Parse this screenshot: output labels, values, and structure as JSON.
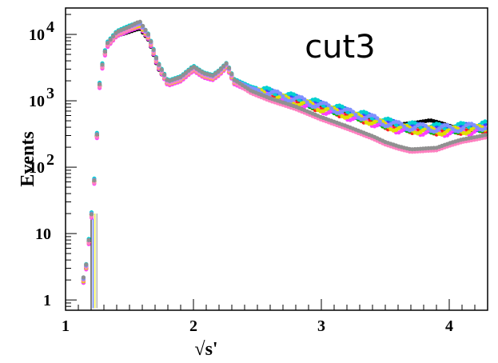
{
  "chart_data": {
    "type": "scatter",
    "title": "",
    "annotation": "cut3",
    "xlabel": "√s'",
    "ylabel": "Events",
    "xlim": [
      1.0,
      4.3
    ],
    "ylim": [
      0.7,
      25000
    ],
    "yscale": "log",
    "grid": false,
    "legend": "none",
    "x_ticks": [
      {
        "value": 1,
        "label": "1"
      },
      {
        "value": 2,
        "label": "2"
      },
      {
        "value": 3,
        "label": "3"
      },
      {
        "value": 4,
        "label": "4"
      }
    ],
    "y_ticks": [
      {
        "value": 1,
        "label": "1"
      },
      {
        "value": 10,
        "label": "10"
      },
      {
        "value": 100,
        "label": "10²",
        "base": "10",
        "exp": "2"
      },
      {
        "value": 1000,
        "label": "10³",
        "base": "10",
        "exp": "3"
      },
      {
        "value": 10000,
        "label": "10⁴",
        "base": "10",
        "exp": "4"
      }
    ],
    "series": [
      {
        "color": "#000000",
        "variant": "high_tail",
        "values": [
          [
            1.15,
            2
          ],
          [
            1.2,
            18
          ],
          [
            1.23,
            90
          ],
          [
            1.27,
            2500
          ],
          [
            1.32,
            7000
          ],
          [
            1.4,
            10500
          ],
          [
            1.5,
            12000
          ],
          [
            1.58,
            13500
          ],
          [
            1.65,
            9000
          ],
          [
            1.72,
            3500
          ],
          [
            1.8,
            1900
          ],
          [
            1.9,
            2200
          ],
          [
            2.0,
            3200
          ],
          [
            2.08,
            2500
          ],
          [
            2.15,
            2300
          ],
          [
            2.2,
            2700
          ],
          [
            2.26,
            3500
          ],
          [
            2.32,
            2000
          ],
          [
            2.45,
            1500
          ],
          [
            2.6,
            1250
          ],
          [
            2.8,
            1050
          ],
          [
            3.0,
            850
          ],
          [
            3.2,
            700
          ],
          [
            3.4,
            550
          ],
          [
            3.5,
            480
          ],
          [
            3.6,
            480
          ],
          [
            3.75,
            520
          ],
          [
            3.85,
            560
          ],
          [
            3.95,
            500
          ],
          [
            4.05,
            430
          ],
          [
            4.15,
            380
          ],
          [
            4.25,
            420
          ]
        ]
      },
      {
        "color": "#ff2020",
        "variant": "main",
        "values": []
      },
      {
        "color": "#00c000",
        "variant": "main",
        "values": []
      },
      {
        "color": "#3050ff",
        "variant": "main",
        "values": []
      },
      {
        "color": "#00d0d0",
        "variant": "main",
        "values": []
      },
      {
        "color": "#ff40ff",
        "variant": "main",
        "values": []
      },
      {
        "color": "#e0e000",
        "variant": "main",
        "values": []
      },
      {
        "color": "#ff80c0",
        "variant": "low_tail",
        "values": []
      },
      {
        "color": "#8090ff",
        "variant": "main",
        "values": []
      },
      {
        "color": "#909090",
        "variant": "low_tail",
        "values": [
          [
            1.15,
            2
          ],
          [
            1.2,
            15
          ],
          [
            1.23,
            80
          ],
          [
            1.27,
            2200
          ],
          [
            1.32,
            6500
          ],
          [
            1.4,
            10000
          ],
          [
            1.5,
            12000
          ],
          [
            1.58,
            14500
          ],
          [
            1.65,
            9000
          ],
          [
            1.72,
            3500
          ],
          [
            1.8,
            1800
          ],
          [
            1.9,
            2100
          ],
          [
            2.0,
            3000
          ],
          [
            2.08,
            2400
          ],
          [
            2.15,
            2200
          ],
          [
            2.2,
            2600
          ],
          [
            2.26,
            3400
          ],
          [
            2.32,
            1900
          ],
          [
            2.45,
            1300
          ],
          [
            2.6,
            1000
          ],
          [
            2.8,
            750
          ],
          [
            3.0,
            520
          ],
          [
            3.2,
            380
          ],
          [
            3.4,
            270
          ],
          [
            3.5,
            220
          ],
          [
            3.6,
            190
          ],
          [
            3.7,
            170
          ],
          [
            3.8,
            175
          ],
          [
            3.9,
            180
          ],
          [
            4.0,
            210
          ],
          [
            4.1,
            240
          ],
          [
            4.2,
            260
          ],
          [
            4.28,
            280
          ]
        ]
      }
    ],
    "main_curve": [
      [
        1.15,
        2
      ],
      [
        1.2,
        16
      ],
      [
        1.23,
        85
      ],
      [
        1.27,
        2300
      ],
      [
        1.32,
        6800
      ],
      [
        1.4,
        10300
      ],
      [
        1.5,
        12500
      ],
      [
        1.58,
        14200
      ],
      [
        1.65,
        9200
      ],
      [
        1.72,
        3600
      ],
      [
        1.8,
        1850
      ],
      [
        1.9,
        2150
      ],
      [
        2.0,
        3100
      ],
      [
        2.08,
        2450
      ],
      [
        2.15,
        2250
      ],
      [
        2.2,
        2650
      ],
      [
        2.26,
        3450
      ],
      [
        2.32,
        1950
      ],
      [
        2.45,
        1500
      ],
      [
        2.6,
        1250
      ],
      [
        2.8,
        1020
      ],
      [
        3.0,
        820
      ],
      [
        3.2,
        650
      ],
      [
        3.4,
        520
      ],
      [
        3.5,
        450
      ],
      [
        3.6,
        410
      ],
      [
        3.7,
        390
      ],
      [
        3.8,
        380
      ],
      [
        3.9,
        370
      ],
      [
        4.0,
        370
      ],
      [
        4.1,
        380
      ],
      [
        4.2,
        390
      ],
      [
        4.28,
        400
      ]
    ]
  }
}
